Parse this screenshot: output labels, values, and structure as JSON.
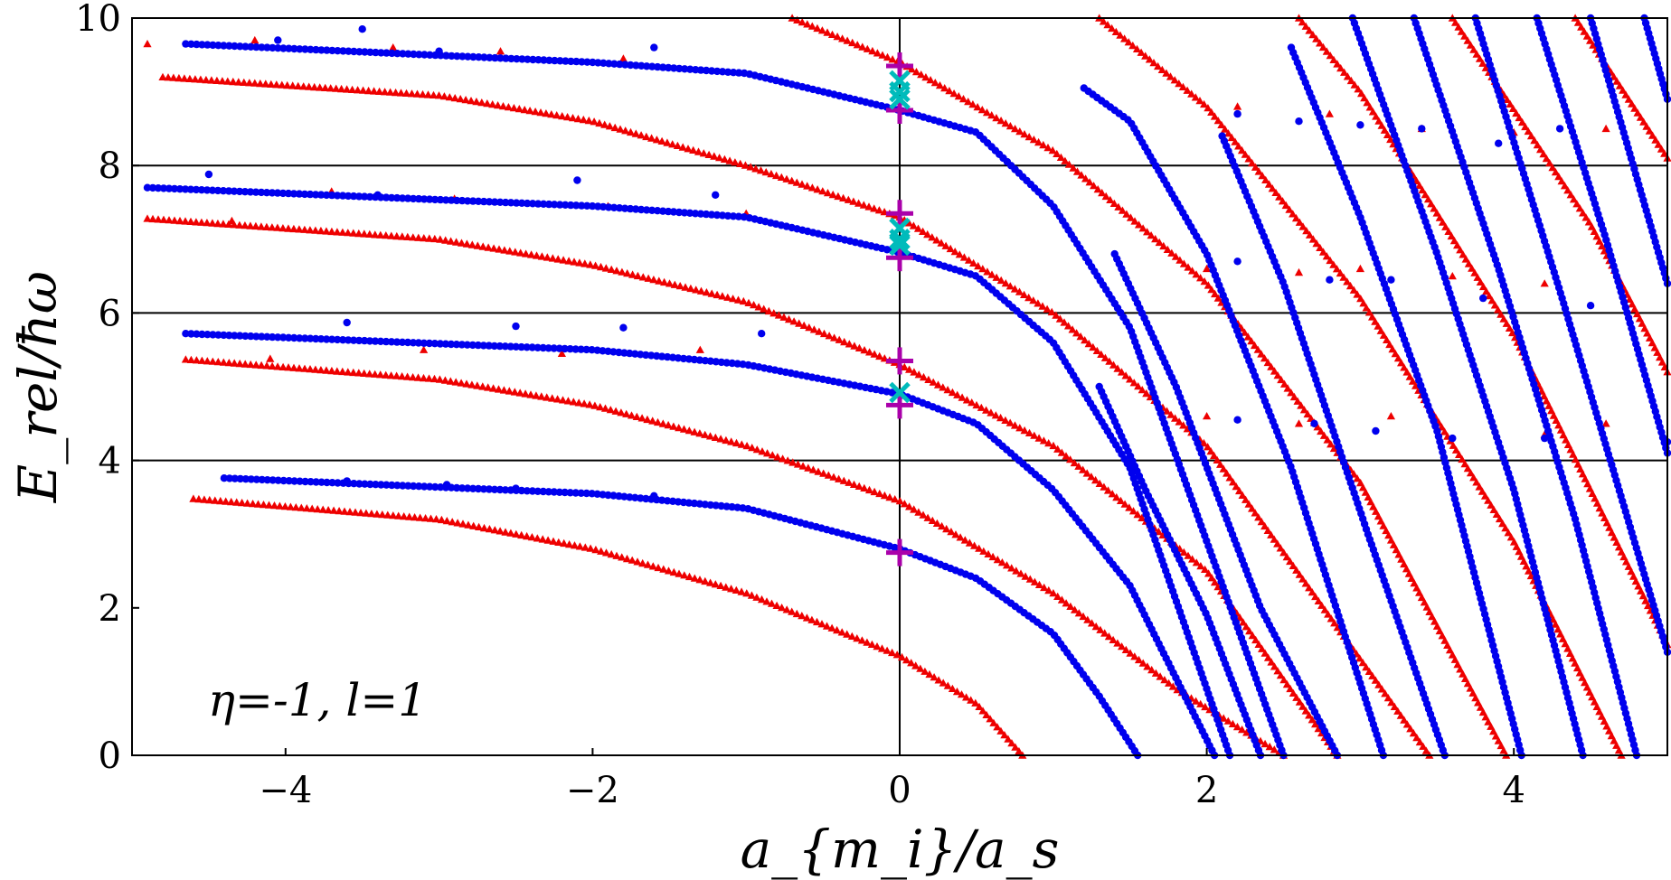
{
  "chart_data": {
    "type": "scatter",
    "title": "",
    "xlabel": "a_{m_i}/a_s",
    "ylabel": "E_rel/ħω",
    "xlim": [
      -5,
      5
    ],
    "ylim": [
      0,
      10
    ],
    "x_ticks": [
      -4,
      -2,
      0,
      2,
      4
    ],
    "x_tick_labels": [
      "−4",
      "−2",
      "0",
      "2",
      "4"
    ],
    "y_ticks": [
      0,
      2,
      4,
      6,
      8,
      10
    ],
    "y_tick_labels": [
      "0",
      "2",
      "4",
      "6",
      "8",
      "10"
    ],
    "hlines": [
      4,
      6,
      8
    ],
    "vline": 0,
    "annotation": "η=-1, l=1",
    "colors": {
      "blue": "#0000ee",
      "red": "#ee0000",
      "cyan": "#00bbbb",
      "magenta": "#aa00aa",
      "axes": "#000000"
    },
    "series": [
      {
        "name": "blue-dots",
        "marker": "circle",
        "color": "#0000ee",
        "branch_anchors": [
          [
            [
              -4.4,
              3.76
            ],
            [
              -2.0,
              3.55
            ],
            [
              -1.0,
              3.35
            ],
            [
              0.0,
              2.8
            ],
            [
              0.5,
              2.4
            ],
            [
              1.0,
              1.65
            ],
            [
              1.3,
              0.8
            ],
            [
              1.55,
              0.0
            ]
          ],
          [
            [
              -4.65,
              5.72
            ],
            [
              -2.0,
              5.5
            ],
            [
              -1.0,
              5.3
            ],
            [
              0.0,
              4.9
            ],
            [
              0.5,
              4.5
            ],
            [
              1.0,
              3.6
            ],
            [
              1.5,
              2.3
            ],
            [
              2.05,
              0.0
            ]
          ],
          [
            [
              -4.9,
              7.7
            ],
            [
              -2.0,
              7.45
            ],
            [
              -1.0,
              7.3
            ],
            [
              0.0,
              6.82
            ],
            [
              0.5,
              6.5
            ],
            [
              1.0,
              5.6
            ],
            [
              1.5,
              3.9
            ],
            [
              2.15,
              0.0
            ]
          ],
          [
            [
              -4.65,
              9.65
            ],
            [
              -2.0,
              9.4
            ],
            [
              -1.0,
              9.25
            ],
            [
              0.0,
              8.75
            ],
            [
              0.5,
              8.45
            ],
            [
              1.0,
              7.45
            ],
            [
              1.5,
              5.8
            ],
            [
              2.5,
              0.0
            ]
          ],
          [
            [
              1.2,
              9.05
            ],
            [
              1.5,
              8.6
            ],
            [
              2.0,
              6.8
            ],
            [
              2.55,
              3.9
            ],
            [
              3.15,
              0.0
            ]
          ],
          [
            [
              1.3,
              5.0
            ],
            [
              1.6,
              3.6
            ],
            [
              2.0,
              1.9
            ],
            [
              2.35,
              0.0
            ]
          ],
          [
            [
              1.4,
              6.8
            ],
            [
              1.8,
              5.0
            ],
            [
              2.35,
              2.0
            ],
            [
              2.85,
              0.0
            ]
          ],
          [
            [
              2.1,
              8.4
            ],
            [
              2.5,
              6.4
            ],
            [
              3.05,
              3.0
            ],
            [
              3.55,
              0.0
            ]
          ],
          [
            [
              2.55,
              9.6
            ],
            [
              3.0,
              7.3
            ],
            [
              3.5,
              4.4
            ],
            [
              4.05,
              0.0
            ]
          ],
          [
            [
              2.95,
              10.0
            ],
            [
              3.5,
              6.8
            ],
            [
              4.0,
              3.6
            ],
            [
              4.45,
              0.0
            ]
          ],
          [
            [
              3.35,
              10.0
            ],
            [
              3.9,
              6.6
            ],
            [
              4.4,
              3.2
            ],
            [
              4.8,
              0.0
            ]
          ],
          [
            [
              3.75,
              10.0
            ],
            [
              4.3,
              6.3
            ],
            [
              4.8,
              2.8
            ],
            [
              5.0,
              1.4
            ]
          ],
          [
            [
              4.15,
              10.0
            ],
            [
              4.6,
              7.0
            ],
            [
              5.0,
              4.1
            ]
          ],
          [
            [
              4.5,
              10.0
            ],
            [
              5.0,
              6.4
            ]
          ],
          [
            [
              4.85,
              10.0
            ],
            [
              5.0,
              8.9
            ]
          ]
        ],
        "scatter_points": [
          [
            -4.05,
            9.7
          ],
          [
            -3.5,
            9.85
          ],
          [
            -3.0,
            9.55
          ],
          [
            -1.6,
            9.6
          ],
          [
            -4.5,
            7.88
          ],
          [
            -3.4,
            7.6
          ],
          [
            -2.1,
            7.8
          ],
          [
            -1.2,
            7.6
          ],
          [
            -3.6,
            5.87
          ],
          [
            -2.5,
            5.82
          ],
          [
            -1.8,
            5.8
          ],
          [
            -0.9,
            5.72
          ],
          [
            -3.6,
            3.72
          ],
          [
            -2.95,
            3.67
          ],
          [
            -2.5,
            3.62
          ],
          [
            -1.6,
            3.52
          ],
          [
            2.2,
            8.7
          ],
          [
            2.6,
            8.6
          ],
          [
            3.0,
            8.55
          ],
          [
            3.4,
            8.5
          ],
          [
            3.9,
            8.3
          ],
          [
            4.3,
            8.5
          ],
          [
            2.2,
            6.7
          ],
          [
            2.8,
            6.45
          ],
          [
            3.2,
            6.45
          ],
          [
            3.8,
            6.2
          ],
          [
            4.5,
            6.1
          ],
          [
            2.2,
            4.55
          ],
          [
            2.7,
            4.5
          ],
          [
            3.1,
            4.4
          ],
          [
            3.6,
            4.3
          ],
          [
            4.2,
            4.3
          ],
          [
            5.0,
            4.25
          ]
        ]
      },
      {
        "name": "red-triangles",
        "marker": "triangle",
        "color": "#ee0000",
        "branch_anchors": [
          [
            [
              -4.6,
              3.48
            ],
            [
              -3.0,
              3.2
            ],
            [
              -2.0,
              2.8
            ],
            [
              -1.0,
              2.2
            ],
            [
              0.0,
              1.35
            ],
            [
              0.5,
              0.7
            ],
            [
              0.8,
              0.0
            ]
          ],
          [
            [
              -4.65,
              5.37
            ],
            [
              -3.0,
              5.1
            ],
            [
              -2.0,
              4.75
            ],
            [
              -1.0,
              4.2
            ],
            [
              0.0,
              3.45
            ],
            [
              1.0,
              2.2
            ],
            [
              1.8,
              0.9
            ],
            [
              2.5,
              0.0
            ]
          ],
          [
            [
              -4.9,
              7.28
            ],
            [
              -3.0,
              7.0
            ],
            [
              -2.0,
              6.65
            ],
            [
              -1.0,
              6.15
            ],
            [
              0.0,
              5.3
            ],
            [
              1.0,
              4.2
            ],
            [
              2.0,
              2.5
            ],
            [
              2.85,
              0.0
            ]
          ],
          [
            [
              -4.8,
              9.2
            ],
            [
              -3.0,
              8.95
            ],
            [
              -2.0,
              8.6
            ],
            [
              -1.0,
              8.0
            ],
            [
              0.0,
              7.3
            ],
            [
              1.0,
              6.0
            ],
            [
              2.0,
              4.2
            ],
            [
              3.45,
              0.0
            ]
          ],
          [
            [
              -0.7,
              10.0
            ],
            [
              0.0,
              9.4
            ],
            [
              1.0,
              8.2
            ],
            [
              2.0,
              6.4
            ],
            [
              3.0,
              3.7
            ],
            [
              3.95,
              0.0
            ]
          ],
          [
            [
              1.3,
              10.0
            ],
            [
              2.0,
              8.8
            ],
            [
              3.0,
              6.2
            ],
            [
              4.0,
              2.9
            ],
            [
              4.7,
              0.0
            ]
          ],
          [
            [
              2.6,
              10.0
            ],
            [
              3.0,
              9.0
            ],
            [
              4.0,
              5.7
            ],
            [
              5.0,
              1.5
            ]
          ],
          [
            [
              3.6,
              10.0
            ],
            [
              4.5,
              7.2
            ],
            [
              5.0,
              5.2
            ]
          ],
          [
            [
              4.4,
              10.0
            ],
            [
              5.0,
              8.1
            ]
          ]
        ],
        "scatter_points": [
          [
            -4.9,
            9.65
          ],
          [
            -4.2,
            9.7
          ],
          [
            -3.3,
            9.6
          ],
          [
            -2.6,
            9.55
          ],
          [
            -1.8,
            9.45
          ],
          [
            -4.35,
            7.25
          ],
          [
            -3.7,
            7.65
          ],
          [
            -2.9,
            7.55
          ],
          [
            -1.9,
            7.45
          ],
          [
            -1.0,
            7.35
          ],
          [
            -4.1,
            5.38
          ],
          [
            -3.1,
            5.5
          ],
          [
            -2.2,
            5.45
          ],
          [
            -1.3,
            5.5
          ],
          [
            2.2,
            8.8
          ],
          [
            2.8,
            8.7
          ],
          [
            3.4,
            8.5
          ],
          [
            4.0,
            8.45
          ],
          [
            4.6,
            8.5
          ],
          [
            2.0,
            6.6
          ],
          [
            2.6,
            6.55
          ],
          [
            3.0,
            6.6
          ],
          [
            3.6,
            6.5
          ],
          [
            4.2,
            6.4
          ],
          [
            2.0,
            4.6
          ],
          [
            2.6,
            4.5
          ],
          [
            3.2,
            4.6
          ],
          [
            4.2,
            4.35
          ],
          [
            4.6,
            4.5
          ]
        ]
      },
      {
        "name": "cyan-crosses",
        "marker": "x",
        "color": "#00bbbb",
        "points": [
          [
            0.0,
            9.15
          ],
          [
            0.0,
            9.0
          ],
          [
            0.0,
            8.9
          ],
          [
            0.0,
            7.15
          ],
          [
            0.0,
            7.0
          ],
          [
            0.0,
            6.92
          ],
          [
            0.0,
            4.92
          ]
        ]
      },
      {
        "name": "magenta-pluses",
        "marker": "plus",
        "color": "#aa00aa",
        "points": [
          [
            0.0,
            9.35
          ],
          [
            0.0,
            8.75
          ],
          [
            0.0,
            7.35
          ],
          [
            0.0,
            6.75
          ],
          [
            0.0,
            5.35
          ],
          [
            0.0,
            4.75
          ],
          [
            0.0,
            2.75
          ]
        ]
      }
    ]
  }
}
